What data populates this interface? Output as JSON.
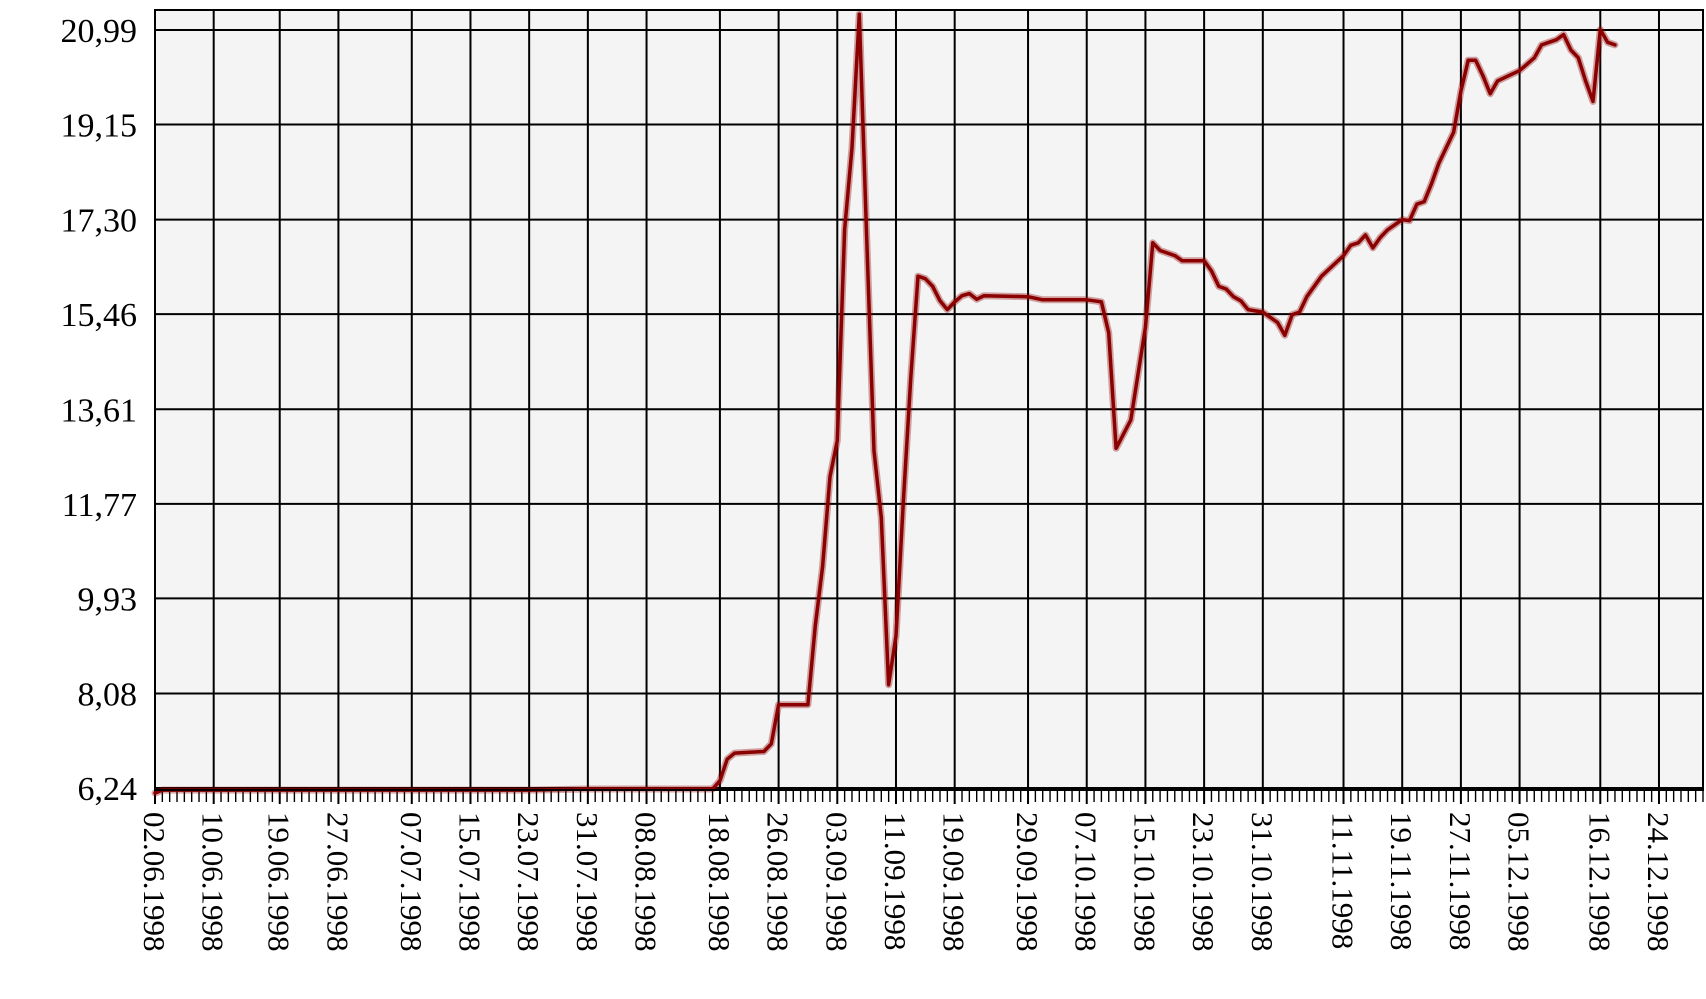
{
  "chart_data": {
    "type": "line",
    "title": "",
    "xlabel": "",
    "ylabel": "",
    "ylim": [
      6.24,
      21.5
    ],
    "y_ticks": [
      "6,24",
      "8,08",
      "9,93",
      "11,77",
      "13,61",
      "15,46",
      "17,30",
      "19,15",
      "20,99"
    ],
    "x_tick_labels": [
      "02.06.1998",
      "10.06.1998",
      "19.06.1998",
      "27.06.1998",
      "07.07.1998",
      "15.07.1998",
      "23.07.1998",
      "31.07.1998",
      "08.08.1998",
      "18.08.1998",
      "26.08.1998",
      "03.09.1998",
      "11.09.1998",
      "19.09.1998",
      "29.09.1998",
      "07.10.1998",
      "15.10.1998",
      "23.10.1998",
      "31.10.1998",
      "11.11.1998",
      "19.11.1998",
      "27.11.1998",
      "05.12.1998",
      "16.12.1998",
      "24.12.1998"
    ],
    "grid": true,
    "line_color": "#8b0000",
    "plot_background": "#f4f4f4",
    "series": [
      {
        "values": [
          [
            "02.06.1998",
            6.14
          ],
          [
            "03.06.1998",
            6.2
          ],
          [
            "10.06.1998",
            6.2
          ],
          [
            "19.06.1998",
            6.2
          ],
          [
            "27.06.1998",
            6.2
          ],
          [
            "07.07.1998",
            6.2
          ],
          [
            "15.07.1998",
            6.2
          ],
          [
            "23.07.1998",
            6.2
          ],
          [
            "31.07.1998",
            6.22
          ],
          [
            "08.08.1998",
            6.22
          ],
          [
            "17.08.1998",
            6.22
          ],
          [
            "18.08.1998",
            6.38
          ],
          [
            "19.08.1998",
            6.8
          ],
          [
            "20.08.1998",
            6.92
          ],
          [
            "24.08.1998",
            6.95
          ],
          [
            "25.08.1998",
            7.1
          ],
          [
            "26.08.1998",
            7.86
          ],
          [
            "30.08.1998",
            7.86
          ],
          [
            "31.08.1998",
            9.4
          ],
          [
            "01.09.1998",
            10.55
          ],
          [
            "02.09.1998",
            12.3
          ],
          [
            "03.09.1998",
            13.0
          ],
          [
            "04.09.1998",
            17.1
          ],
          [
            "05.09.1998",
            18.7
          ],
          [
            "06.09.1998",
            21.3
          ],
          [
            "07.09.1998",
            17.0
          ],
          [
            "08.09.1998",
            12.8
          ],
          [
            "09.09.1998",
            11.5
          ],
          [
            "10.09.1998",
            8.25
          ],
          [
            "11.09.1998",
            9.2
          ],
          [
            "12.09.1998",
            11.8
          ],
          [
            "13.09.1998",
            14.2
          ],
          [
            "14.09.1998",
            16.2
          ],
          [
            "15.09.1998",
            16.15
          ],
          [
            "16.09.1998",
            16.0
          ],
          [
            "17.09.1998",
            15.72
          ],
          [
            "18.09.1998",
            15.55
          ],
          [
            "19.09.1998",
            15.7
          ],
          [
            "20.09.1998",
            15.82
          ],
          [
            "21.09.1998",
            15.86
          ],
          [
            "22.09.1998",
            15.75
          ],
          [
            "23.09.1998",
            15.82
          ],
          [
            "29.09.1998",
            15.8
          ],
          [
            "01.10.1998",
            15.74
          ],
          [
            "07.10.1998",
            15.74
          ],
          [
            "08.10.1998",
            15.72
          ],
          [
            "09.10.1998",
            15.7
          ],
          [
            "10.10.1998",
            15.1
          ],
          [
            "11.10.1998",
            12.85
          ],
          [
            "13.10.1998",
            13.4
          ],
          [
            "15.10.1998",
            15.2
          ],
          [
            "16.10.1998",
            16.85
          ],
          [
            "17.10.1998",
            16.7
          ],
          [
            "19.10.1998",
            16.6
          ],
          [
            "20.10.1998",
            16.5
          ],
          [
            "23.10.1998",
            16.5
          ],
          [
            "24.10.1998",
            16.3
          ],
          [
            "25.10.1998",
            16.0
          ],
          [
            "26.10.1998",
            15.95
          ],
          [
            "27.10.1998",
            15.8
          ],
          [
            "28.10.1998",
            15.72
          ],
          [
            "29.10.1998",
            15.55
          ],
          [
            "31.10.1998",
            15.5
          ],
          [
            "02.11.1998",
            15.3
          ],
          [
            "03.11.1998",
            15.05
          ],
          [
            "04.11.1998",
            15.45
          ],
          [
            "05.11.1998",
            15.5
          ],
          [
            "06.11.1998",
            15.8
          ],
          [
            "08.11.1998",
            16.2
          ],
          [
            "11.11.1998",
            16.6
          ],
          [
            "12.11.1998",
            16.8
          ],
          [
            "13.11.1998",
            16.85
          ],
          [
            "14.11.1998",
            17.0
          ],
          [
            "15.11.1998",
            16.75
          ],
          [
            "16.11.1998",
            16.95
          ],
          [
            "17.11.1998",
            17.1
          ],
          [
            "19.11.1998",
            17.3
          ],
          [
            "20.11.1998",
            17.28
          ],
          [
            "21.11.1998",
            17.6
          ],
          [
            "22.11.1998",
            17.65
          ],
          [
            "23.11.1998",
            18.0
          ],
          [
            "24.11.1998",
            18.4
          ],
          [
            "25.11.1998",
            18.7
          ],
          [
            "26.11.1998",
            19.0
          ],
          [
            "27.11.1998",
            19.8
          ],
          [
            "28.11.1998",
            20.4
          ],
          [
            "29.11.1998",
            20.4
          ],
          [
            "30.11.1998",
            20.1
          ],
          [
            "01.12.1998",
            19.75
          ],
          [
            "02.12.1998",
            20.0
          ],
          [
            "05.12.1998",
            20.2
          ],
          [
            "07.12.1998",
            20.45
          ],
          [
            "08.12.1998",
            20.7
          ],
          [
            "09.12.1998",
            20.75
          ],
          [
            "10.12.1998",
            20.8
          ],
          [
            "11.12.1998",
            20.9
          ],
          [
            "12.12.1998",
            20.6
          ],
          [
            "13.12.1998",
            20.45
          ],
          [
            "14.12.1998",
            20.0
          ],
          [
            "15.12.1998",
            19.6
          ],
          [
            "16.12.1998",
            21.0
          ],
          [
            "17.12.1998",
            20.75
          ],
          [
            "18.12.1998",
            20.7
          ]
        ]
      }
    ]
  }
}
